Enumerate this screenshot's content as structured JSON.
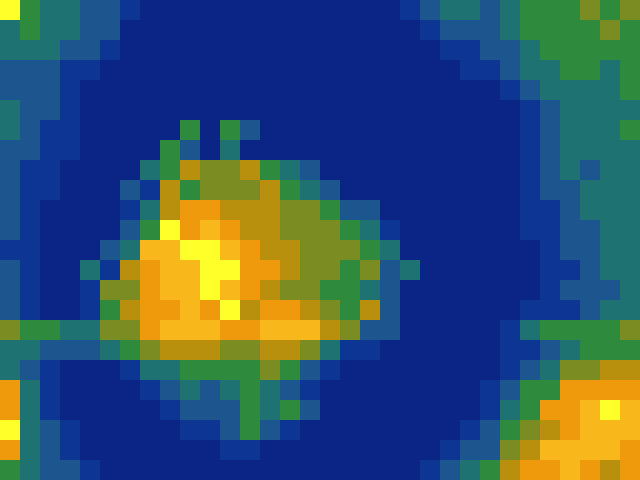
{
  "chart_data": {
    "type": "heatmap",
    "tick_labels": false,
    "grid": false,
    "value_range": [
      0,
      9
    ],
    "cells": [
      [
        9,
        4,
        3,
        3,
        2,
        2,
        1,
        0,
        0,
        0,
        0,
        0,
        0,
        0,
        0,
        0,
        0,
        0,
        0,
        0,
        1,
        2,
        3,
        3,
        2,
        3,
        4,
        4,
        4,
        5,
        4,
        5
      ],
      [
        3,
        4,
        3,
        3,
        2,
        2,
        0,
        0,
        0,
        0,
        0,
        0,
        0,
        0,
        0,
        0,
        0,
        0,
        0,
        0,
        0,
        1,
        2,
        2,
        2,
        3,
        4,
        4,
        4,
        4,
        5,
        4
      ],
      [
        3,
        3,
        3,
        2,
        2,
        1,
        0,
        0,
        0,
        0,
        0,
        0,
        0,
        0,
        0,
        0,
        0,
        0,
        0,
        0,
        0,
        0,
        1,
        1,
        2,
        2,
        3,
        4,
        4,
        4,
        4,
        4
      ],
      [
        2,
        2,
        2,
        1,
        1,
        0,
        0,
        0,
        0,
        0,
        0,
        0,
        0,
        0,
        0,
        0,
        0,
        0,
        0,
        0,
        0,
        0,
        0,
        1,
        1,
        2,
        3,
        3,
        4,
        4,
        3,
        4
      ],
      [
        2,
        2,
        2,
        1,
        0,
        0,
        0,
        0,
        0,
        0,
        0,
        0,
        0,
        0,
        0,
        0,
        0,
        0,
        0,
        0,
        0,
        0,
        0,
        0,
        0,
        1,
        2,
        3,
        3,
        3,
        3,
        4
      ],
      [
        3,
        2,
        2,
        1,
        0,
        0,
        0,
        0,
        0,
        0,
        0,
        0,
        0,
        0,
        0,
        0,
        0,
        0,
        0,
        0,
        0,
        0,
        0,
        0,
        0,
        0,
        1,
        2,
        3,
        3,
        3,
        3
      ],
      [
        3,
        2,
        1,
        1,
        0,
        0,
        0,
        0,
        0,
        4,
        0,
        4,
        2,
        0,
        0,
        0,
        0,
        0,
        0,
        0,
        0,
        0,
        0,
        0,
        0,
        0,
        1,
        2,
        3,
        3,
        3,
        4
      ],
      [
        2,
        2,
        1,
        1,
        0,
        0,
        0,
        0,
        4,
        2,
        0,
        3,
        0,
        0,
        0,
        0,
        0,
        0,
        0,
        0,
        0,
        0,
        0,
        0,
        0,
        0,
        1,
        2,
        3,
        3,
        3,
        3
      ],
      [
        2,
        1,
        1,
        0,
        0,
        0,
        0,
        3,
        4,
        6,
        5,
        5,
        6,
        4,
        3,
        2,
        0,
        0,
        0,
        0,
        0,
        0,
        0,
        0,
        0,
        0,
        1,
        2,
        3,
        2,
        3,
        3
      ],
      [
        2,
        1,
        1,
        0,
        0,
        0,
        2,
        1,
        6,
        4,
        5,
        5,
        5,
        6,
        4,
        3,
        2,
        0,
        0,
        0,
        0,
        0,
        0,
        0,
        0,
        0,
        1,
        2,
        2,
        3,
        3,
        3
      ],
      [
        2,
        1,
        0,
        0,
        0,
        0,
        1,
        3,
        6,
        7,
        7,
        6,
        6,
        6,
        5,
        5,
        4,
        2,
        2,
        0,
        0,
        0,
        0,
        0,
        0,
        0,
        1,
        1,
        2,
        3,
        3,
        3
      ],
      [
        2,
        1,
        0,
        0,
        0,
        0,
        2,
        4,
        9,
        7,
        8,
        7,
        6,
        6,
        5,
        5,
        5,
        4,
        3,
        1,
        0,
        0,
        0,
        0,
        0,
        0,
        1,
        1,
        2,
        2,
        3,
        3
      ],
      [
        1,
        1,
        0,
        0,
        0,
        2,
        3,
        8,
        8,
        9,
        9,
        8,
        7,
        6,
        6,
        5,
        5,
        5,
        4,
        3,
        0,
        0,
        0,
        0,
        0,
        0,
        0,
        1,
        2,
        2,
        3,
        3
      ],
      [
        2,
        1,
        0,
        0,
        3,
        1,
        6,
        7,
        8,
        8,
        9,
        9,
        7,
        7,
        6,
        5,
        5,
        4,
        5,
        2,
        3,
        0,
        0,
        0,
        0,
        0,
        0,
        1,
        1,
        2,
        3,
        3
      ],
      [
        2,
        1,
        0,
        0,
        1,
        5,
        5,
        7,
        8,
        8,
        9,
        8,
        7,
        6,
        5,
        5,
        4,
        4,
        3,
        2,
        0,
        0,
        0,
        0,
        0,
        0,
        0,
        1,
        2,
        2,
        2,
        3
      ],
      [
        2,
        1,
        0,
        0,
        1,
        4,
        6,
        7,
        7,
        8,
        7,
        9,
        6,
        7,
        7,
        6,
        5,
        4,
        6,
        2,
        0,
        0,
        0,
        0,
        0,
        0,
        1,
        1,
        1,
        2,
        3,
        3
      ],
      [
        5,
        4,
        4,
        3,
        3,
        5,
        5,
        7,
        8,
        8,
        8,
        7,
        7,
        8,
        8,
        8,
        6,
        5,
        2,
        2,
        0,
        0,
        0,
        0,
        0,
        1,
        3,
        4,
        4,
        4,
        4,
        5
      ],
      [
        3,
        3,
        2,
        2,
        2,
        3,
        4,
        5,
        6,
        6,
        6,
        5,
        5,
        6,
        6,
        5,
        3,
        1,
        1,
        0,
        0,
        0,
        0,
        0,
        0,
        1,
        1,
        2,
        3,
        4,
        4,
        4
      ],
      [
        3,
        2,
        1,
        0,
        0,
        0,
        1,
        3,
        3,
        4,
        4,
        4,
        4,
        5,
        4,
        2,
        1,
        0,
        0,
        0,
        0,
        0,
        0,
        0,
        0,
        1,
        2,
        3,
        5,
        5,
        6,
        6
      ],
      [
        7,
        3,
        1,
        0,
        0,
        0,
        0,
        1,
        2,
        3,
        2,
        3,
        4,
        3,
        2,
        1,
        0,
        0,
        0,
        0,
        0,
        0,
        0,
        0,
        1,
        2,
        4,
        4,
        7,
        7,
        7,
        7
      ],
      [
        7,
        3,
        1,
        0,
        0,
        0,
        0,
        0,
        1,
        2,
        2,
        2,
        4,
        3,
        4,
        2,
        0,
        0,
        0,
        0,
        0,
        0,
        0,
        0,
        1,
        3,
        4,
        7,
        7,
        8,
        9,
        8
      ],
      [
        9,
        3,
        2,
        1,
        0,
        0,
        0,
        0,
        0,
        1,
        1,
        2,
        4,
        2,
        1,
        0,
        0,
        0,
        0,
        0,
        0,
        0,
        0,
        1,
        2,
        4,
        5,
        6,
        7,
        8,
        8,
        8
      ],
      [
        7,
        3,
        2,
        1,
        0,
        0,
        0,
        0,
        0,
        0,
        0,
        1,
        1,
        0,
        0,
        0,
        0,
        0,
        0,
        0,
        0,
        0,
        1,
        2,
        2,
        5,
        6,
        8,
        8,
        8,
        8,
        7
      ],
      [
        4,
        3,
        2,
        2,
        1,
        0,
        0,
        0,
        0,
        0,
        0,
        0,
        0,
        0,
        0,
        0,
        0,
        0,
        0,
        0,
        0,
        1,
        2,
        3,
        4,
        6,
        7,
        7,
        8,
        7,
        6,
        7
      ]
    ]
  }
}
